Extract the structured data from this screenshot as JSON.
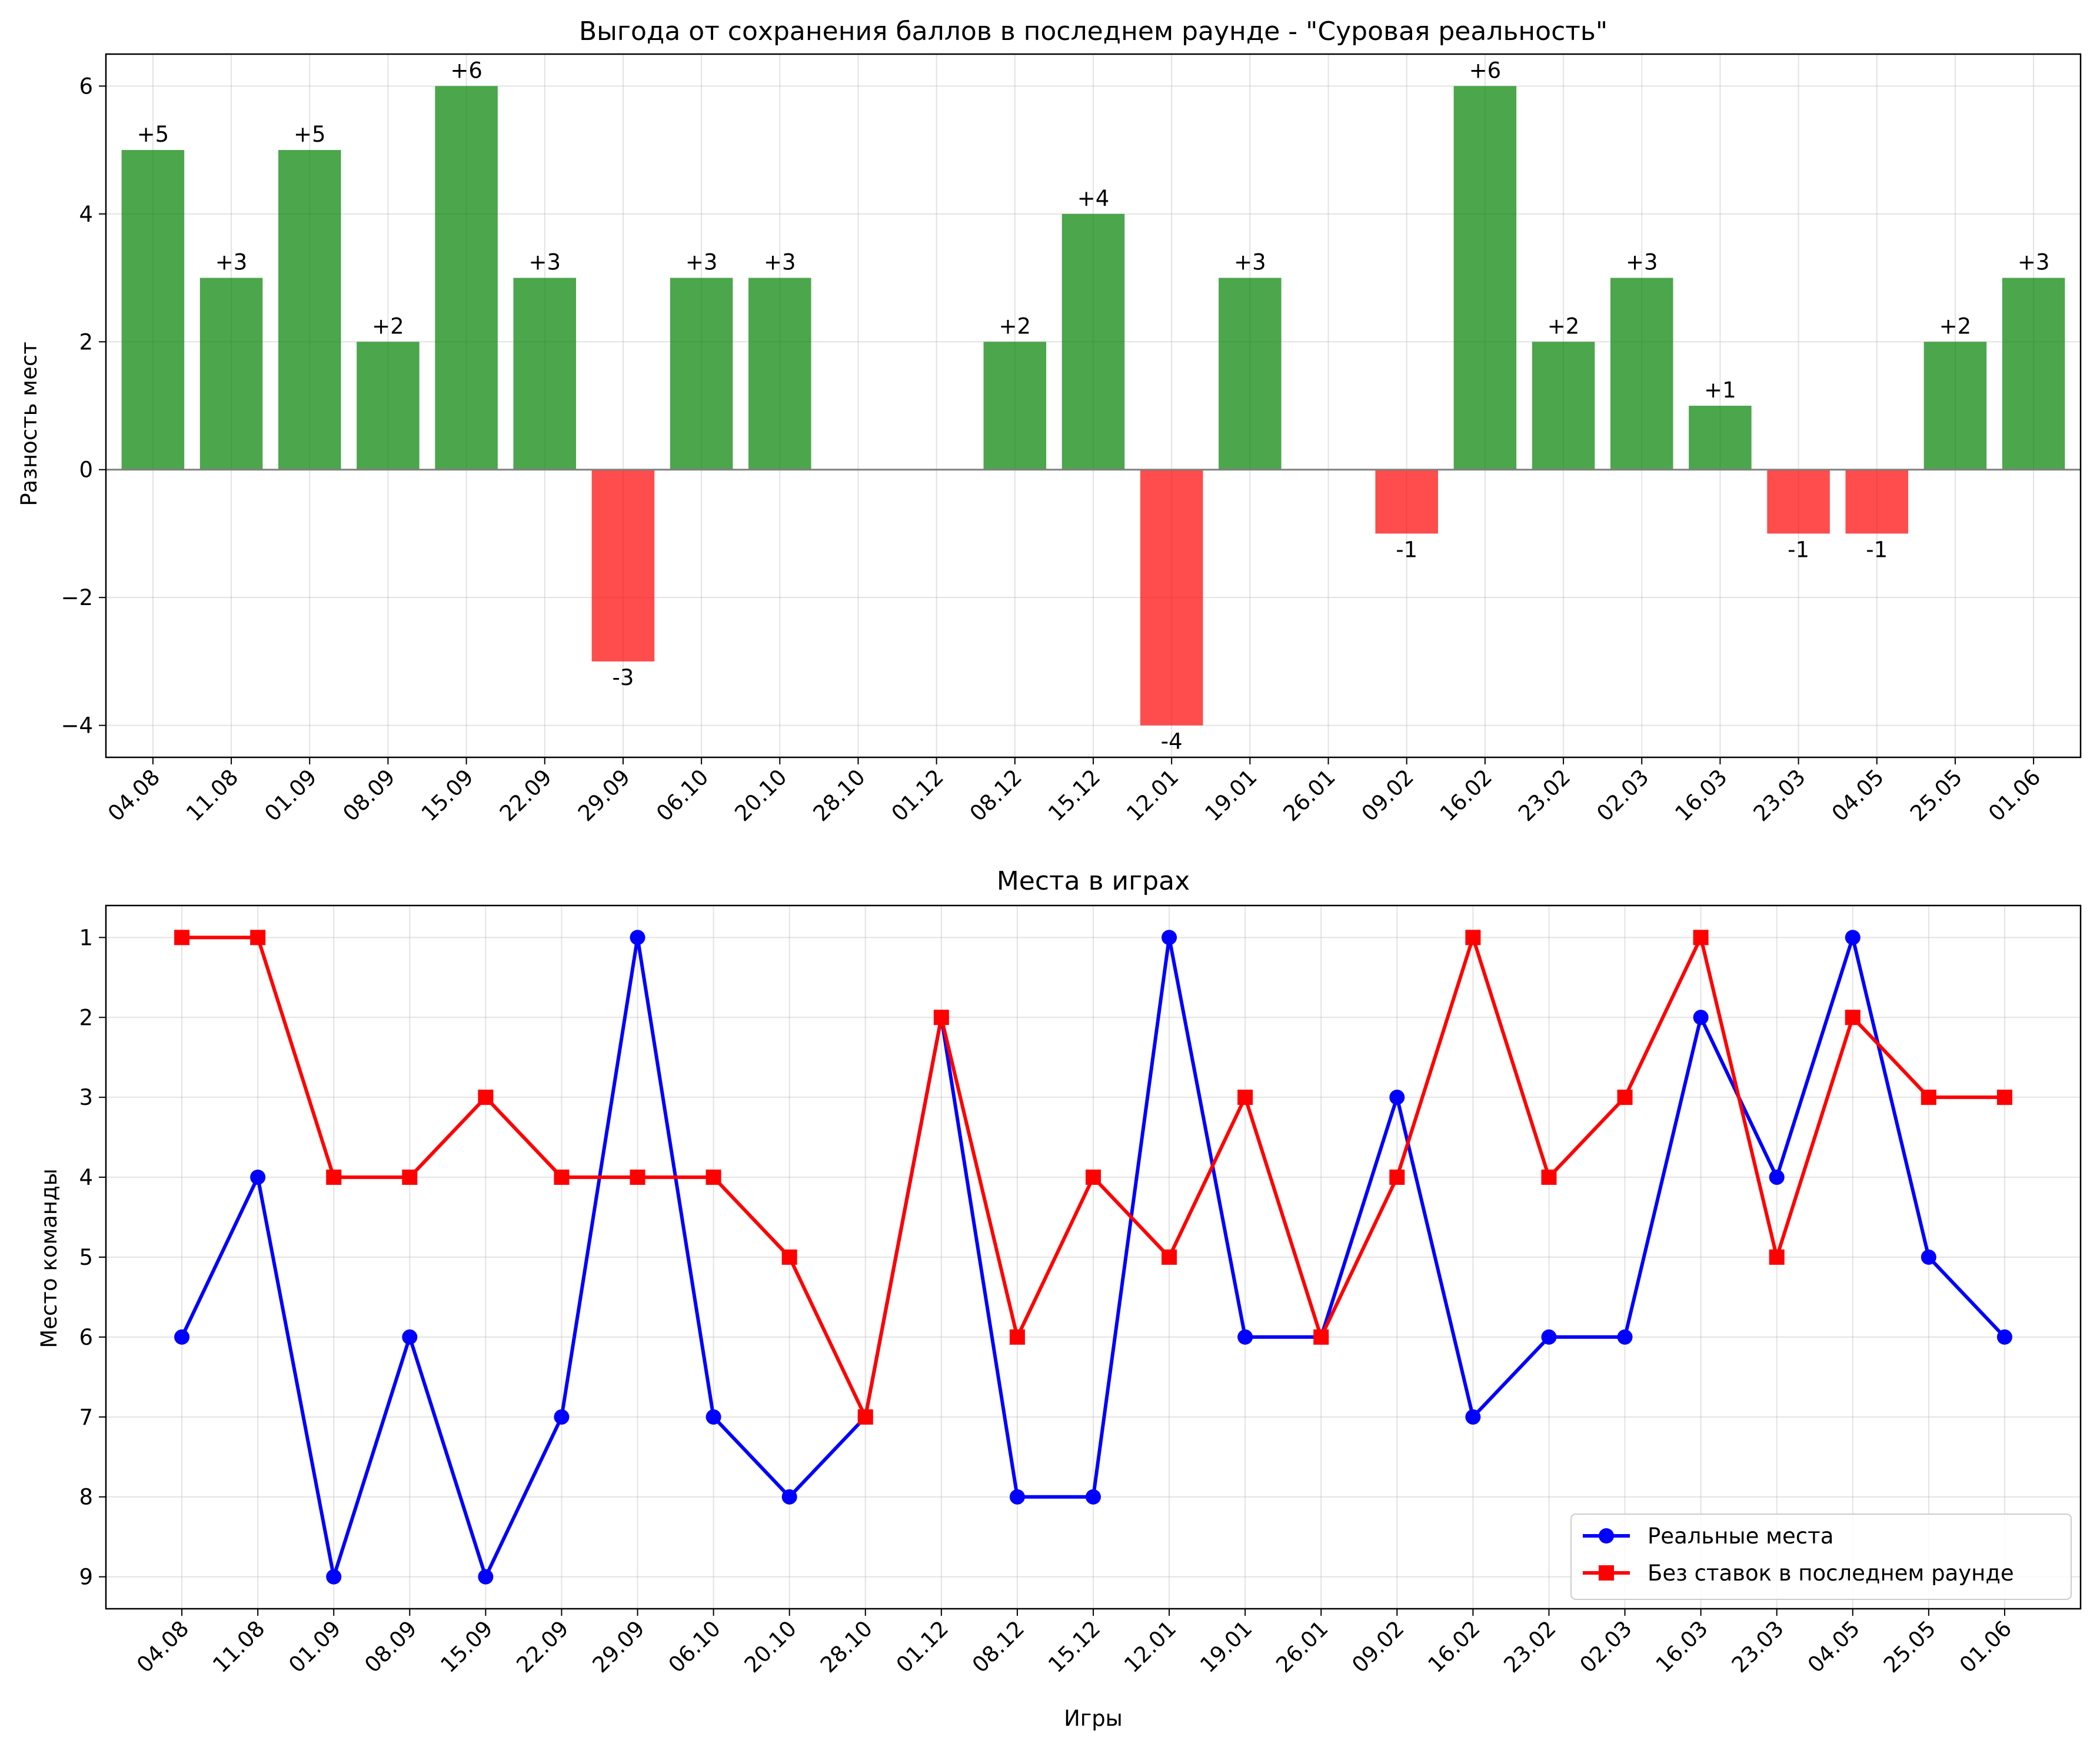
{
  "chart_data": [
    {
      "type": "bar",
      "title": "Выгода от сохранения баллов в последнем раунде - \"Суровая реальность\"",
      "xlabel": "",
      "ylabel": "Разность мест",
      "categories": [
        "04.08",
        "11.08",
        "01.09",
        "08.09",
        "15.09",
        "22.09",
        "29.09",
        "06.10",
        "20.10",
        "28.10",
        "01.12",
        "08.12",
        "15.12",
        "12.01",
        "19.01",
        "26.01",
        "09.02",
        "16.02",
        "23.02",
        "02.03",
        "16.03",
        "23.03",
        "04.05",
        "25.05",
        "01.06"
      ],
      "values": [
        5,
        3,
        5,
        2,
        6,
        3,
        -3,
        3,
        3,
        0,
        0,
        2,
        4,
        -4,
        3,
        0,
        -1,
        6,
        2,
        3,
        1,
        -1,
        -1,
        2,
        3
      ],
      "value_labels": [
        "+5",
        "+3",
        "+5",
        "+2",
        "+6",
        "+3",
        "-3",
        "+3",
        "+3",
        "",
        "",
        "+2",
        "+4",
        "-4",
        "+3",
        "",
        "-1",
        "+6",
        "+2",
        "+3",
        "+1",
        "-1",
        "-1",
        "+2",
        "+3"
      ],
      "yticks": [
        "−4",
        "−2",
        "0",
        "2",
        "4",
        "6"
      ],
      "ylim": [
        -4.5,
        6.5
      ],
      "grid": true,
      "colors": {
        "positive": "#008000",
        "negative": "#ff0000",
        "zero_line": "#808080"
      }
    },
    {
      "type": "line",
      "title": "Места в играх",
      "xlabel": "Игры",
      "ylabel": "Место команды",
      "categories": [
        "04.08",
        "11.08",
        "01.09",
        "08.09",
        "15.09",
        "22.09",
        "29.09",
        "06.10",
        "20.10",
        "28.10",
        "01.12",
        "08.12",
        "15.12",
        "12.01",
        "19.01",
        "26.01",
        "09.02",
        "16.02",
        "23.02",
        "02.03",
        "16.03",
        "23.03",
        "04.05",
        "25.05",
        "01.06"
      ],
      "yticks": [
        "1",
        "2",
        "3",
        "4",
        "5",
        "6",
        "7",
        "8",
        "9"
      ],
      "ylim": [
        9.4,
        0.6
      ],
      "y_inverted": true,
      "grid": true,
      "legend_position": "bottom-right",
      "series": [
        {
          "name": "Реальные места",
          "color": "#0000ff",
          "marker": "circle",
          "values": [
            6,
            4,
            9,
            6,
            9,
            7,
            1,
            7,
            8,
            7,
            2,
            8,
            8,
            1,
            6,
            6,
            3,
            7,
            6,
            6,
            2,
            4,
            1,
            5,
            6
          ]
        },
        {
          "name": "Без ставок в последнем раунде",
          "color": "#ff0000",
          "marker": "square",
          "values": [
            1,
            1,
            4,
            4,
            3,
            4,
            4,
            4,
            5,
            7,
            2,
            6,
            4,
            5,
            3,
            6,
            4,
            1,
            4,
            3,
            1,
            5,
            2,
            3,
            3
          ]
        }
      ]
    }
  ]
}
